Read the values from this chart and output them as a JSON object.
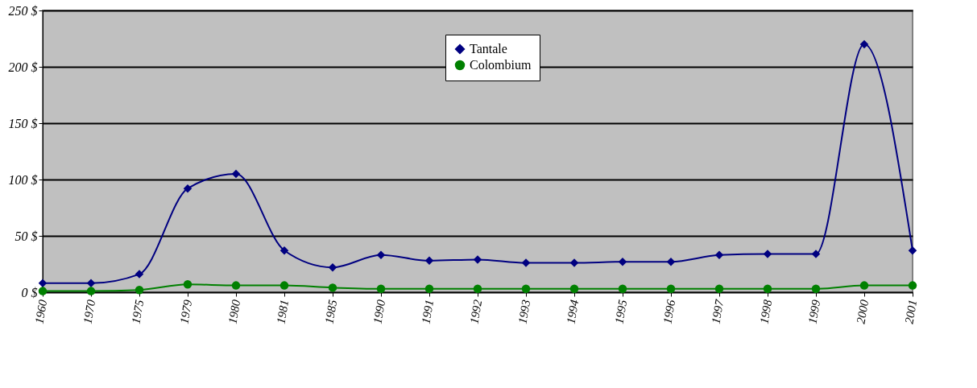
{
  "chart_data": {
    "type": "line",
    "categories": [
      "1960",
      "1970",
      "1975",
      "1979",
      "1980",
      "1981",
      "1985",
      "1990",
      "1991",
      "1992",
      "1993",
      "1994",
      "1995",
      "1996",
      "1997",
      "1998",
      "1999",
      "2000",
      "2001"
    ],
    "series": [
      {
        "name": "Tantale",
        "color": "#000080",
        "marker": "diamond",
        "values": [
          8,
          8,
          16,
          92,
          105,
          37,
          22,
          33,
          28,
          29,
          26,
          26,
          27,
          27,
          33,
          34,
          34,
          220,
          37
        ]
      },
      {
        "name": "Colombium",
        "color": "#008000",
        "marker": "circle",
        "values": [
          1,
          1,
          2,
          7,
          6,
          6,
          4,
          3,
          3,
          3,
          3,
          3,
          3,
          3,
          3,
          3,
          3,
          6,
          6
        ]
      }
    ],
    "ylim": [
      0,
      250
    ],
    "yticks": [
      {
        "value": 0,
        "label": "0 $"
      },
      {
        "value": 50,
        "label": "50 $"
      },
      {
        "value": 100,
        "label": "100 $"
      },
      {
        "value": 150,
        "label": "150 $"
      },
      {
        "value": 200,
        "label": "200 $"
      },
      {
        "value": 250,
        "label": "250 $"
      }
    ],
    "grid": "y",
    "legend": "top",
    "line_style": "solid"
  }
}
